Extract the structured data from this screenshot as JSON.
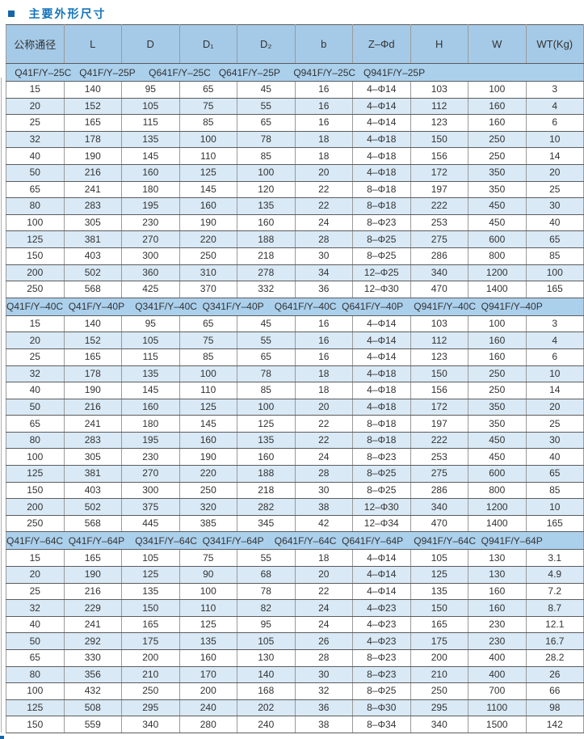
{
  "title": "主要外形尺寸",
  "table": {
    "columns": [
      "公称通径",
      "L",
      "D",
      "D₁",
      "D₂",
      "b",
      "Z–Φd",
      "H",
      "W",
      "WT(Kg)"
    ],
    "sections": [
      {
        "band": "Q41F/Y–25C   Q41F/Y–25P     Q641F/Y–25C   Q641F/Y–25P     Q941F/Y–25C   Q941F/Y–25P",
        "rows": [
          [
            15,
            140,
            95,
            65,
            45,
            16,
            "4–Φ14",
            103,
            100,
            3
          ],
          [
            20,
            152,
            105,
            75,
            55,
            16,
            "4–Φ14",
            112,
            160,
            4
          ],
          [
            25,
            165,
            115,
            85,
            65,
            16,
            "4–Φ14",
            123,
            160,
            6
          ],
          [
            32,
            178,
            135,
            100,
            78,
            18,
            "4–Φ18",
            150,
            250,
            10
          ],
          [
            40,
            190,
            145,
            110,
            85,
            18,
            "4–Φ18",
            156,
            250,
            14
          ],
          [
            50,
            216,
            160,
            125,
            100,
            20,
            "4–Φ18",
            172,
            350,
            20
          ],
          [
            65,
            241,
            180,
            145,
            120,
            22,
            "8–Φ18",
            197,
            350,
            25
          ],
          [
            80,
            283,
            195,
            160,
            135,
            22,
            "8–Φ18",
            222,
            450,
            30
          ],
          [
            100,
            305,
            230,
            190,
            160,
            24,
            "8–Φ23",
            253,
            450,
            40
          ],
          [
            125,
            381,
            270,
            220,
            188,
            28,
            "8–Φ25",
            275,
            600,
            65
          ],
          [
            150,
            403,
            300,
            250,
            218,
            30,
            "8–Φ25",
            286,
            800,
            85
          ],
          [
            200,
            502,
            360,
            310,
            278,
            34,
            "12–Φ25",
            340,
            1200,
            100
          ],
          [
            250,
            568,
            425,
            370,
            332,
            36,
            "12–Φ30",
            470,
            1400,
            165
          ]
        ]
      },
      {
        "band": "Q41F/Y–40C  Q41F/Y–40P    Q341F/Y–40C  Q341F/Y–40P    Q641F/Y–40C  Q641F/Y–40P    Q941F/Y–40C  Q941F/Y–40P",
        "rows": [
          [
            15,
            140,
            95,
            65,
            45,
            16,
            "4–Φ14",
            103,
            100,
            3
          ],
          [
            20,
            152,
            105,
            75,
            55,
            16,
            "4–Φ14",
            112,
            160,
            4
          ],
          [
            25,
            165,
            115,
            85,
            65,
            16,
            "4–Φ14",
            123,
            160,
            6
          ],
          [
            32,
            178,
            135,
            100,
            78,
            18,
            "4–Φ18",
            150,
            250,
            10
          ],
          [
            40,
            190,
            145,
            110,
            85,
            18,
            "4–Φ18",
            156,
            250,
            14
          ],
          [
            50,
            216,
            160,
            125,
            100,
            20,
            "4–Φ18",
            172,
            350,
            20
          ],
          [
            65,
            241,
            180,
            145,
            125,
            22,
            "8–Φ18",
            197,
            350,
            25
          ],
          [
            80,
            283,
            195,
            160,
            135,
            22,
            "8–Φ18",
            222,
            450,
            30
          ],
          [
            100,
            305,
            230,
            190,
            160,
            24,
            "8–Φ23",
            253,
            450,
            40
          ],
          [
            125,
            381,
            270,
            220,
            188,
            28,
            "8–Φ25",
            275,
            600,
            65
          ],
          [
            150,
            403,
            300,
            250,
            218,
            30,
            "8–Φ25",
            286,
            800,
            85
          ],
          [
            200,
            502,
            375,
            320,
            282,
            38,
            "12–Φ30",
            340,
            1200,
            10
          ],
          [
            250,
            568,
            445,
            385,
            345,
            42,
            "12–Φ34",
            470,
            1400,
            165
          ]
        ]
      },
      {
        "band": "Q41F/Y–64C  Q41F/Y–64P    Q341F/Y–64C  Q341F/Y–64P    Q641F/Y–64C  Q641F/Y–64P    Q941F/Y–64C  Q941F/Y–64P",
        "rows": [
          [
            15,
            165,
            105,
            75,
            55,
            18,
            "4–Φ14",
            105,
            130,
            3.1
          ],
          [
            20,
            190,
            125,
            90,
            68,
            20,
            "4–Φ14",
            125,
            130,
            4.9
          ],
          [
            25,
            216,
            135,
            100,
            78,
            22,
            "4–Φ14",
            135,
            160,
            7.2
          ],
          [
            32,
            229,
            150,
            110,
            82,
            24,
            "4–Φ23",
            150,
            160,
            8.7
          ],
          [
            40,
            241,
            165,
            125,
            95,
            24,
            "4–Φ23",
            165,
            230,
            12.1
          ],
          [
            50,
            292,
            175,
            135,
            105,
            26,
            "4–Φ23",
            175,
            230,
            16.7
          ],
          [
            65,
            330,
            200,
            160,
            130,
            28,
            "8–Φ23",
            200,
            400,
            28.2
          ],
          [
            80,
            356,
            210,
            170,
            140,
            30,
            "8–Φ23",
            210,
            400,
            26
          ],
          [
            100,
            432,
            250,
            200,
            168,
            32,
            "8–Φ25",
            250,
            700,
            66
          ],
          [
            125,
            508,
            295,
            240,
            202,
            36,
            "8–Φ30",
            295,
            1100,
            98
          ],
          [
            150,
            559,
            340,
            280,
            240,
            38,
            "8–Φ34",
            340,
            1500,
            142
          ]
        ]
      }
    ]
  },
  "colors": {
    "title_blue": "#1273b9",
    "bullet_blue": "#1565a9",
    "header_bg": "#a5cae7",
    "band_bg": "#abd0ec",
    "stripe_bg": "#d9e9f6",
    "row_border": "#5c5c5c",
    "col_border": "#9a9a9a"
  }
}
